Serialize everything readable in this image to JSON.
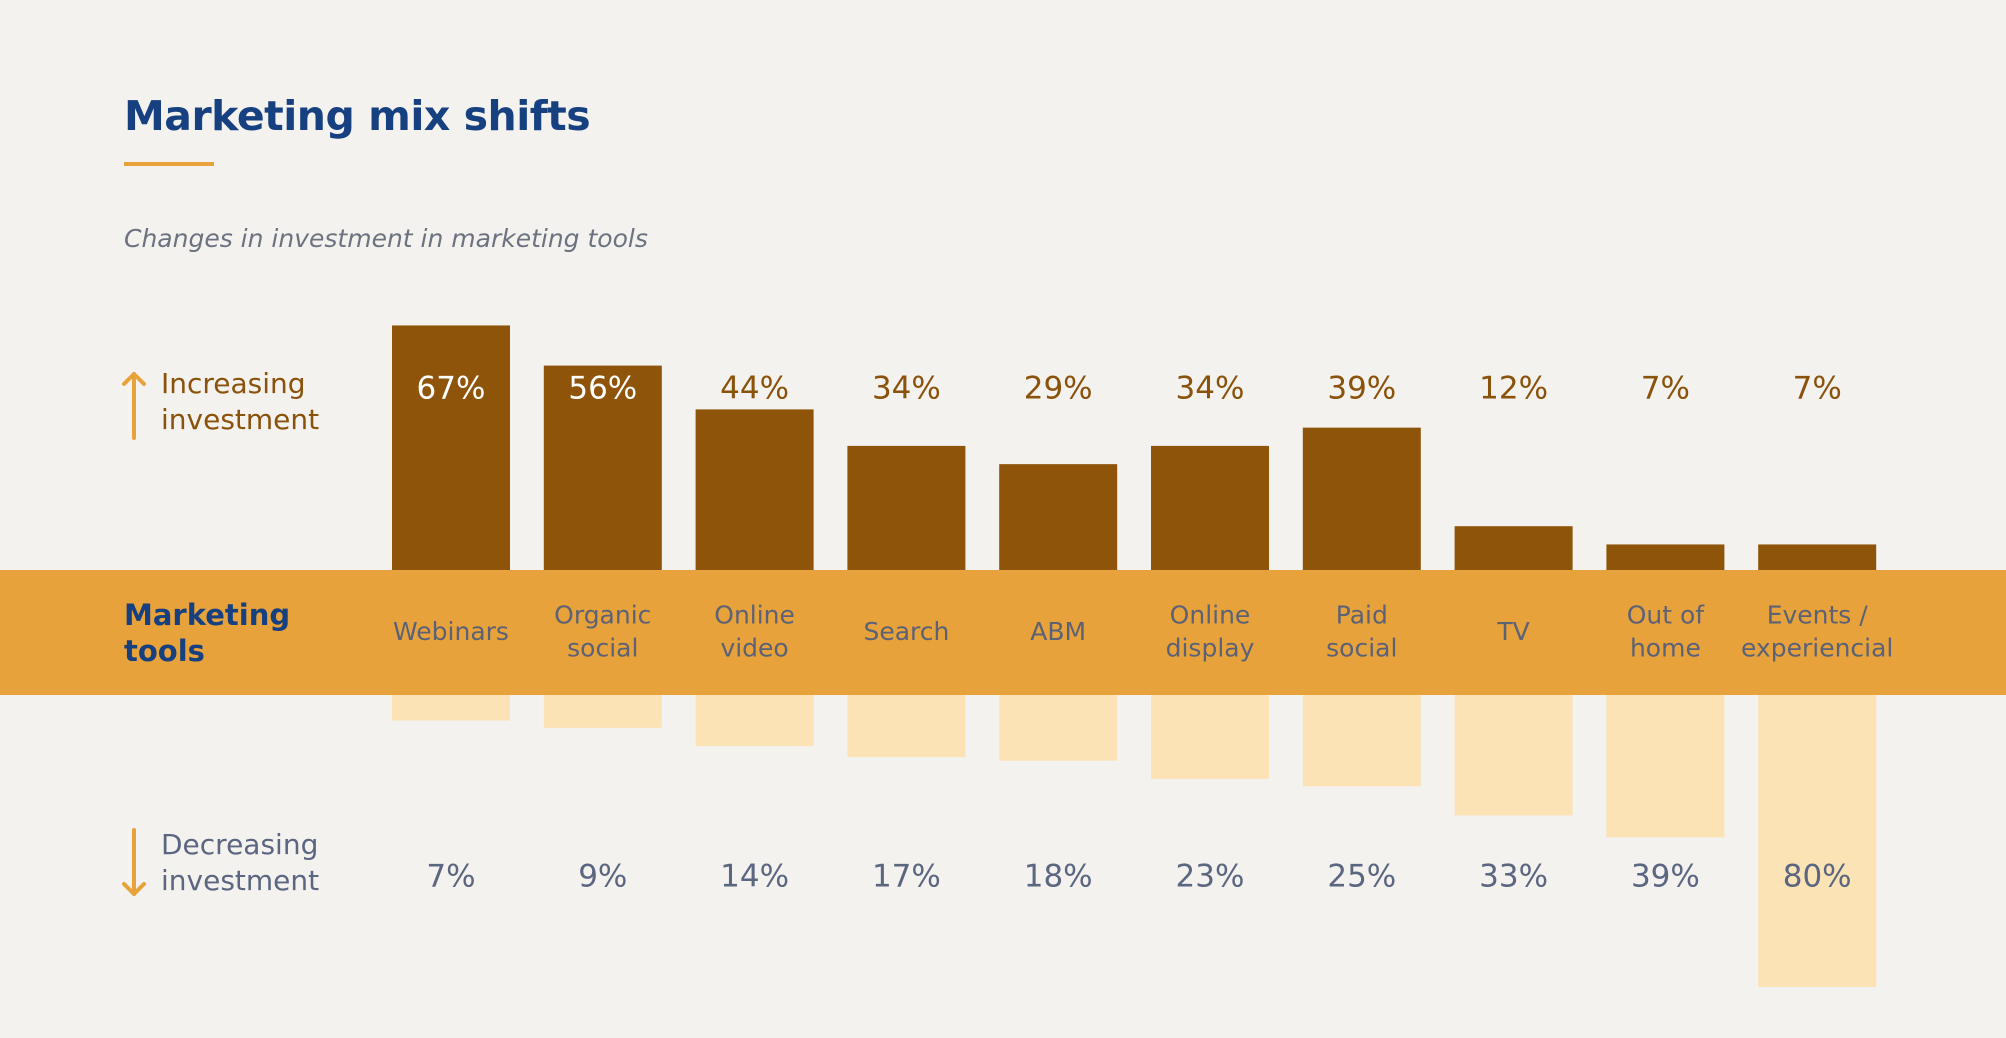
{
  "title": "Marketing mix shifts",
  "subtitle": "Changes in investment in marketing tools",
  "labels": {
    "increasing_line1": "Increasing",
    "increasing_line2": "investment",
    "decreasing_line1": "Decreasing",
    "decreasing_line2": "investment",
    "band_line1": "Marketing",
    "band_line2": "tools"
  },
  "colors": {
    "increase_bar": "#8e5409",
    "decrease_bar": "#fce3b6",
    "band": "#e8a23b",
    "title": "#16407f",
    "increase_text": "#8a520b",
    "decrease_text": "#5b6680",
    "category_text": "#5c6275"
  },
  "chart_data": {
    "type": "bar",
    "categories": [
      [
        "Webinars"
      ],
      [
        "Organic",
        "social"
      ],
      [
        "Online",
        "video"
      ],
      [
        "Search"
      ],
      [
        "ABM"
      ],
      [
        "Online",
        "display"
      ],
      [
        "Paid",
        "social"
      ],
      [
        "TV"
      ],
      [
        "Out of",
        "home"
      ],
      [
        "Events /",
        "experiencial"
      ]
    ],
    "series": [
      {
        "name": "Increasing investment",
        "values": [
          67,
          56,
          44,
          34,
          29,
          34,
          39,
          12,
          7,
          7
        ]
      },
      {
        "name": "Decreasing investment",
        "values": [
          7,
          9,
          14,
          17,
          18,
          23,
          25,
          33,
          39,
          80
        ]
      }
    ],
    "value_suffix": "%"
  }
}
